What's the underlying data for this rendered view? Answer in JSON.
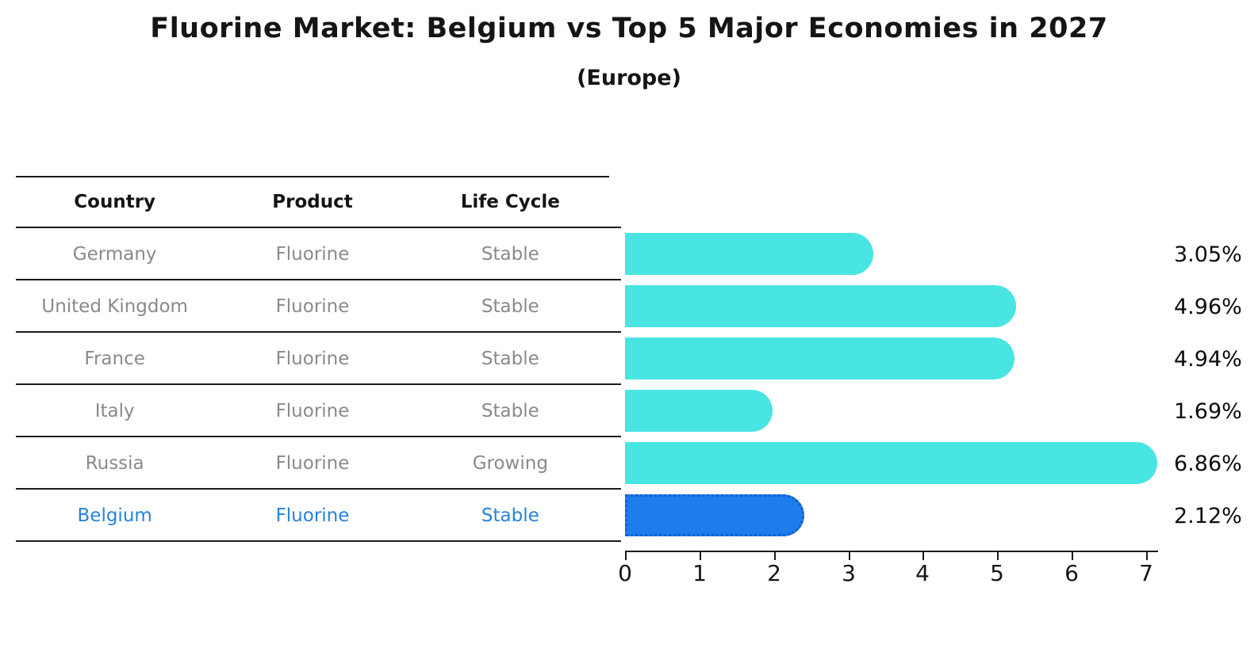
{
  "title": "Fluorine Market: Belgium vs Top 5 Major Economies in 2027",
  "subtitle": "(Europe)",
  "table": {
    "headers": [
      "Country",
      "Product",
      "Life Cycle"
    ],
    "rows": [
      {
        "country": "Germany",
        "product": "Fluorine",
        "life_cycle": "Stable"
      },
      {
        "country": "United Kingdom",
        "product": "Fluorine",
        "life_cycle": "Stable"
      },
      {
        "country": "France",
        "product": "Fluorine",
        "life_cycle": "Stable"
      },
      {
        "country": "Italy",
        "product": "Fluorine",
        "life_cycle": "Stable"
      },
      {
        "country": "Russia",
        "product": "Fluorine",
        "life_cycle": "Growing"
      },
      {
        "country": "Belgium",
        "product": "Fluorine",
        "life_cycle": "Stable"
      }
    ]
  },
  "chart_data": {
    "type": "bar",
    "orientation": "horizontal",
    "title": "Fluorine Market: Belgium vs Top 5 Major Economies in 2027",
    "subtitle": "(Europe)",
    "categories": [
      "Germany",
      "United Kingdom",
      "France",
      "Italy",
      "Russia",
      "Belgium"
    ],
    "values": [
      3.05,
      4.96,
      4.94,
      1.69,
      6.86,
      2.12
    ],
    "value_labels": [
      "3.05%",
      "4.96%",
      "4.94%",
      "1.69%",
      "6.86%",
      "2.12%"
    ],
    "unit": "%",
    "x_ticks": [
      0,
      1,
      2,
      3,
      4,
      5,
      6,
      7
    ],
    "xlim": [
      0,
      7
    ],
    "grid": false,
    "legend": false,
    "highlight_index": 5,
    "highlight_category": "Belgium"
  },
  "colors": {
    "bar": "#48E5E2",
    "highlight_bar": "#1F7CEC",
    "highlight_border": "#0F5FD0",
    "highlight_text": "#2583DB",
    "row_text": "#8a8a8a",
    "header_text": "#141414"
  }
}
